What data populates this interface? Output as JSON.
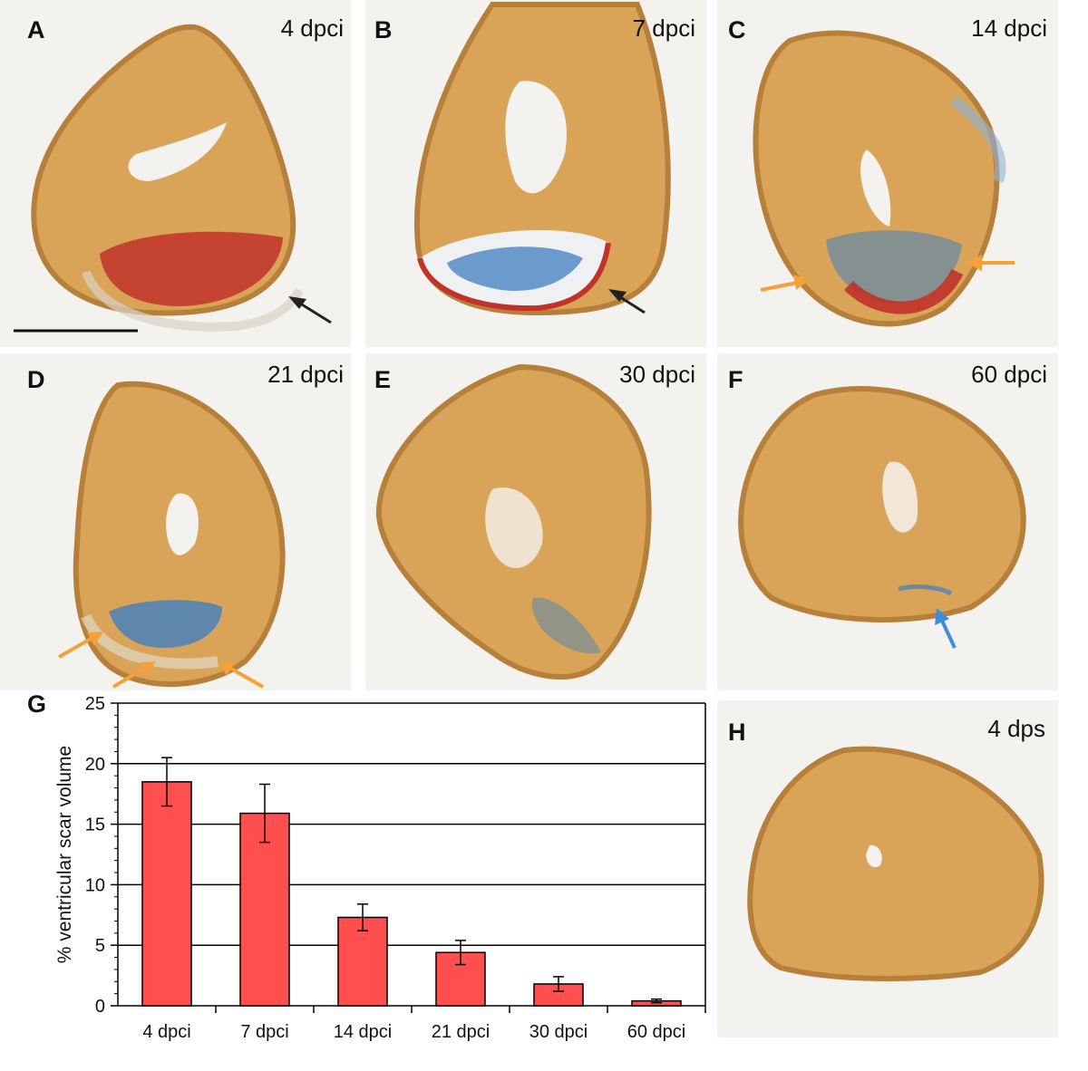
{
  "panels": [
    {
      "id": "A",
      "timepoint": "4 dpci",
      "arrow_color": "#222222"
    },
    {
      "id": "B",
      "timepoint": "7 dpci",
      "arrow_color": "#222222"
    },
    {
      "id": "C",
      "timepoint": "14 dpci",
      "arrow_color": "#f5a13a"
    },
    {
      "id": "D",
      "timepoint": "21 dpci",
      "arrow_color": "#f5a13a"
    },
    {
      "id": "E",
      "timepoint": "30 dpci"
    },
    {
      "id": "F",
      "timepoint": "60 dpci",
      "arrow_color": "#3b8fd9"
    },
    {
      "id": "H",
      "timepoint": "4 dps"
    }
  ],
  "chart_label": "G",
  "colors": {
    "tissue": "#d9a457",
    "tissue_dark": "#b7803a",
    "fibrin": "#c0322a",
    "collagen": "#3f7fc0",
    "bar": "#ff4f4f"
  },
  "chart_data": {
    "type": "bar",
    "categories": [
      "4 dpci",
      "7 dpci",
      "14 dpci",
      "21 dpci",
      "30 dpci",
      "60 dpci"
    ],
    "values": [
      18.5,
      15.9,
      7.3,
      4.4,
      1.8,
      0.4
    ],
    "errors": [
      2.0,
      2.4,
      1.1,
      1.0,
      0.6,
      0.15
    ],
    "ylabel": "% ventricular scar volume",
    "xlabel": "",
    "ylim": [
      0,
      25
    ],
    "yticks": [
      0,
      5,
      10,
      15,
      20,
      25
    ],
    "grid": true,
    "bar_color": "#ff4f4f"
  }
}
